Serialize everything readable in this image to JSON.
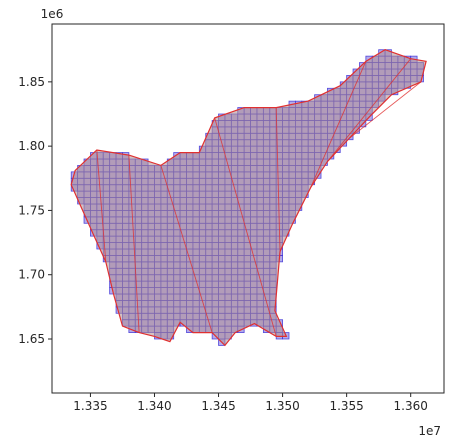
{
  "chart_data": {
    "type": "map-grid",
    "xlim": [
      13320000,
      13626000
    ],
    "ylim": [
      1608000,
      1895000
    ],
    "xticks": [
      13350000,
      13400000,
      13450000,
      13500000,
      13550000,
      13600000
    ],
    "yticks": [
      1650000,
      1700000,
      1750000,
      1800000,
      1850000
    ],
    "xtick_labels": [
      "1.335",
      "1.340",
      "1.345",
      "1.350",
      "1.355",
      "1.360"
    ],
    "ytick_labels": [
      "1.65",
      "1.70",
      "1.75",
      "1.80",
      "1.85"
    ],
    "x_offset_label": "1e7",
    "y_offset_label": "1e6",
    "grid_cell_size": 5000,
    "grid_style": {
      "fill": "#8a80e0",
      "edge": "#3b2fd6"
    },
    "polygon_style": {
      "fill": "#b09090",
      "edge": "#e03030"
    },
    "region_outline": [
      [
        13338000,
        1781000
      ],
      [
        13355000,
        1797000
      ],
      [
        13380000,
        1793000
      ],
      [
        13405000,
        1785000
      ],
      [
        13420000,
        1795000
      ],
      [
        13435000,
        1795000
      ],
      [
        13447000,
        1822000
      ],
      [
        13470000,
        1830000
      ],
      [
        13495000,
        1830000
      ],
      [
        13520000,
        1835000
      ],
      [
        13545000,
        1847000
      ],
      [
        13565000,
        1866000
      ],
      [
        13580000,
        1875000
      ],
      [
        13600000,
        1868000
      ],
      [
        13612000,
        1866000
      ],
      [
        13608000,
        1850000
      ],
      [
        13585000,
        1840000
      ],
      [
        13568000,
        1823000
      ],
      [
        13552000,
        1806000
      ],
      [
        13535000,
        1788000
      ],
      [
        13522000,
        1768000
      ],
      [
        13508000,
        1740000
      ],
      [
        13498000,
        1718000
      ],
      [
        13496000,
        1695000
      ],
      [
        13494000,
        1672000
      ],
      [
        13503000,
        1652000
      ],
      [
        13495000,
        1652000
      ],
      [
        13478000,
        1662000
      ],
      [
        13463000,
        1655000
      ],
      [
        13455000,
        1645000
      ],
      [
        13445000,
        1655000
      ],
      [
        13430000,
        1655000
      ],
      [
        13420000,
        1663000
      ],
      [
        13412000,
        1648000
      ],
      [
        13400000,
        1652000
      ],
      [
        13388000,
        1655000
      ],
      [
        13375000,
        1660000
      ],
      [
        13368000,
        1685000
      ],
      [
        13362000,
        1710000
      ],
      [
        13352000,
        1732000
      ],
      [
        13343000,
        1752000
      ],
      [
        13335000,
        1770000
      ]
    ]
  }
}
